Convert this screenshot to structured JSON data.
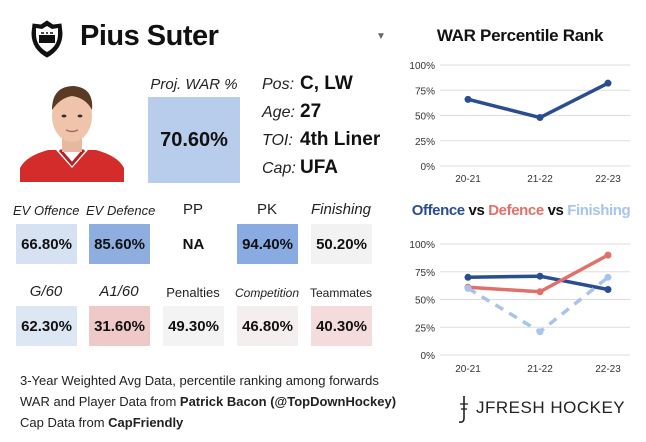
{
  "header": {
    "player_name": "Pius Suter",
    "logo_icon": "nhl-shield-icon",
    "dropdown_icon": "chevron-down-icon"
  },
  "proj_war": {
    "label": "Proj. WAR %",
    "value": "70.60%",
    "color": "#b8cdeb"
  },
  "info": [
    {
      "label": "Pos:",
      "value": "C, LW"
    },
    {
      "label": "Age:",
      "value": "27"
    },
    {
      "label": "TOI:",
      "value": "4th Liner"
    },
    {
      "label": "Cap:",
      "value": "UFA"
    }
  ],
  "metrics_row1": [
    {
      "label": "EV Offence",
      "value": "66.80%",
      "color": "#d6e1f2"
    },
    {
      "label": "EV Defence",
      "value": "85.60%",
      "color": "#8eaee0"
    },
    {
      "label": "PP",
      "value": "NA",
      "color": "#ffffff"
    },
    {
      "label": "PK",
      "value": "94.40%",
      "color": "#89abe2"
    },
    {
      "label": "Finishing",
      "value": "50.20%",
      "color": "#f2f2f2"
    }
  ],
  "metrics_row2": [
    {
      "label": "G/60",
      "value": "62.30%",
      "color": "#dde6f3"
    },
    {
      "label": "A1/60",
      "value": "31.60%",
      "color": "#efc8c8"
    },
    {
      "label": "Penalties",
      "value": "49.30%",
      "color": "#f3f3f3"
    },
    {
      "label": "Competition",
      "value": "46.80%",
      "color": "#f5eeee"
    },
    {
      "label": "Teammates",
      "value": "40.30%",
      "color": "#f5dcdc"
    }
  ],
  "footer": {
    "line1": "3-Year Weighted Avg Data, percentile ranking among forwards",
    "line2_prefix": "WAR and Player Data from ",
    "line2_bold": "Patrick Bacon (@TopDownHockey)",
    "line3_prefix": "Cap Data from ",
    "line3_bold": "CapFriendly"
  },
  "brand": "JFRESH HOCKEY",
  "chart_titles": {
    "war_title": "WAR Percentile Rank",
    "off_word": "Offence",
    "vs1": "vs",
    "def_word": "Defence",
    "vs2": "vs",
    "fin_word": "Finishing"
  },
  "colors": {
    "offence": "#2a4d92",
    "defence": "#e07068",
    "finishing": "#a9c4ec",
    "war": "#2a4d92"
  },
  "chart_data": [
    {
      "type": "line",
      "title": "WAR Percentile Rank",
      "categories": [
        "20-21",
        "21-22",
        "22-23"
      ],
      "ylim": [
        0,
        100
      ],
      "yticks": [
        "0%",
        "25%",
        "50%",
        "75%",
        "100%"
      ],
      "grid": true,
      "series": [
        {
          "values": [
            66,
            48,
            82
          ],
          "color": "#2a4d92"
        }
      ]
    },
    {
      "type": "line",
      "title": "Offence vs Defence vs Finishing",
      "categories": [
        "20-21",
        "21-22",
        "22-23"
      ],
      "ylim": [
        0,
        100
      ],
      "yticks": [
        "0%",
        "25%",
        "50%",
        "75%",
        "100%"
      ],
      "grid": true,
      "series": [
        {
          "name": "Offence",
          "values": [
            70,
            71,
            59
          ],
          "color": "#2a4d92",
          "dash": false
        },
        {
          "name": "Defence",
          "values": [
            61,
            57,
            90
          ],
          "color": "#e07068",
          "dash": false
        },
        {
          "name": "Finishing",
          "values": [
            60,
            21,
            70
          ],
          "color": "#a9c4ec",
          "dash": true
        }
      ]
    }
  ]
}
